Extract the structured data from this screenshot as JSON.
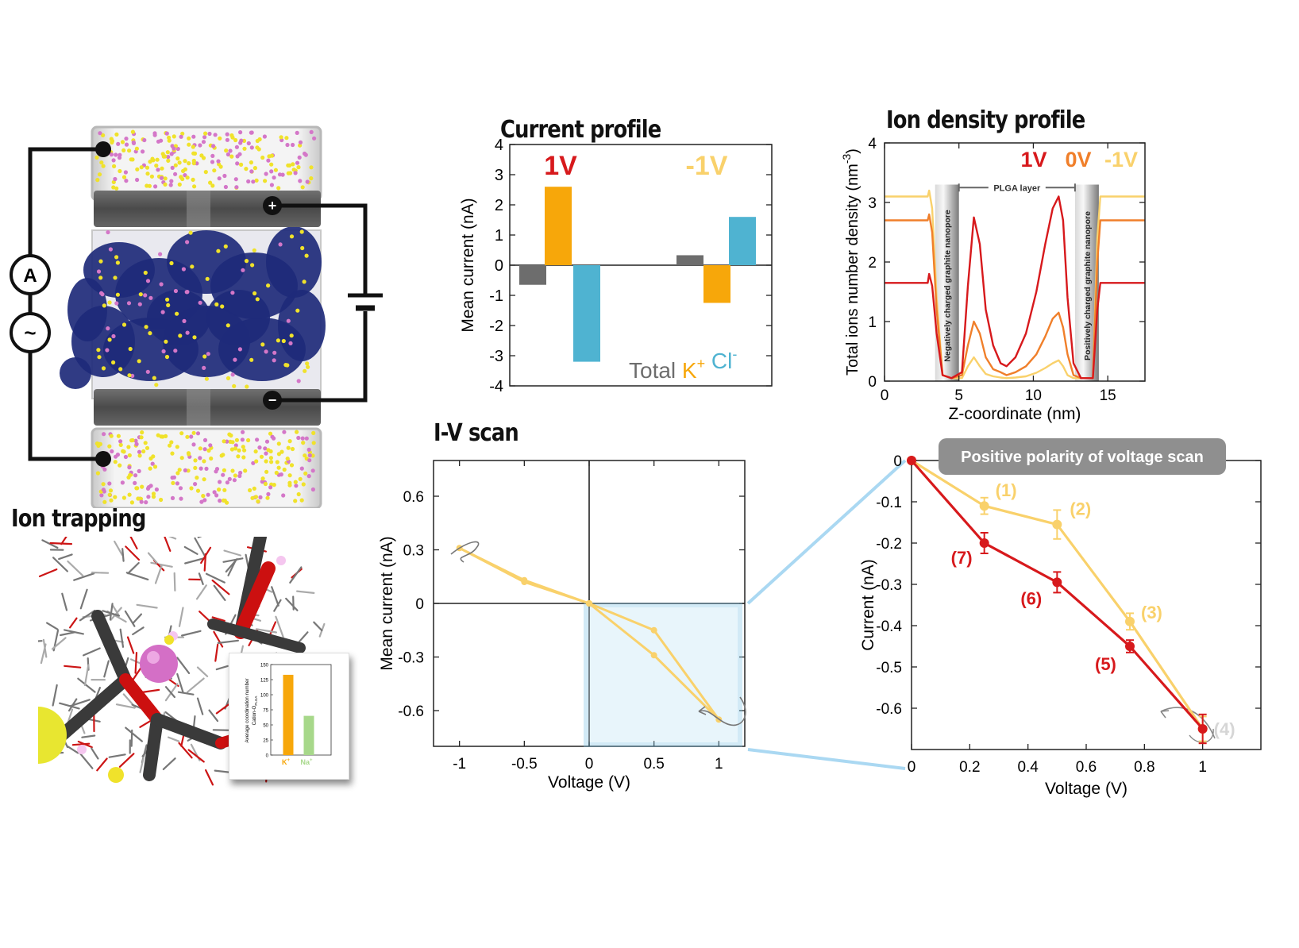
{
  "panels": {
    "current_title": "Current profile",
    "density_title": "Ion density profile",
    "iv_title": "I-V scan",
    "trap_title": "Ion trapping"
  },
  "colors": {
    "v_pos": "#d7191c",
    "v_zero": "#f07f2a",
    "v_neg": "#f9d16b",
    "total": "#6d6d6d",
    "k": "#f7a70a",
    "cl": "#4fb3d1",
    "na": "#a7d88a",
    "water_yellow": "#f0e22b",
    "water_pink": "#d477c8",
    "polymer": "#1e2a7a",
    "graphite": "#555555",
    "zoom_box": "#7fc6e8"
  },
  "circuit": {
    "ammeter_label": "A",
    "source_label": "~",
    "plus_label": "+",
    "minus_label": "−"
  },
  "chart_data": [
    {
      "id": "current_profile",
      "type": "bar",
      "title": "Current profile",
      "ylabel": "Mean current (nA)",
      "ylim": [
        -4,
        4
      ],
      "yticks": [
        4,
        3,
        2,
        1,
        0,
        -1,
        -2,
        -3,
        -4
      ],
      "groups": [
        {
          "label": "1V",
          "color": "#d7191c",
          "values": {
            "Total": -0.65,
            "K+": 2.6,
            "Cl-": -3.2
          }
        },
        {
          "label": "-1V",
          "color": "#f9d16b",
          "values": {
            "Total": 0.33,
            "K+": -1.25,
            "Cl-": 1.6
          }
        }
      ],
      "legend": [
        {
          "name": "Total",
          "sup": "",
          "color": "#6d6d6d"
        },
        {
          "name": "K",
          "sup": "+",
          "color": "#f7a70a"
        },
        {
          "name": "Cl",
          "sup": "-",
          "color": "#4fb3d1"
        }
      ],
      "legend_placement": "bottom-right"
    },
    {
      "id": "ion_density",
      "type": "line",
      "title": "Ion density profile",
      "xlabel": "Z-coordinate (nm)",
      "ylabel": "Total ions number density (nm",
      "ylabel_sup": "-3",
      "ylabel_end": ")",
      "xlim": [
        0,
        17.5
      ],
      "ylim": [
        0,
        4
      ],
      "xticks": [
        0,
        5,
        10,
        15
      ],
      "yticks": [
        0,
        1,
        2,
        3,
        4
      ],
      "annotations": {
        "layer": "PLGA layer",
        "neg_pore": "Negatively charged graphite nanopore",
        "pos_pore": "Positively charged graphite nanopore"
      },
      "series": [
        {
          "name": "1V",
          "color": "#d7191c",
          "x": [
            0,
            2.9,
            3.0,
            3.2,
            3.5,
            3.9,
            4.5,
            5.2,
            5.6,
            6.0,
            6.4,
            6.8,
            7.3,
            7.8,
            8.2,
            8.8,
            9.5,
            10.2,
            10.8,
            11.3,
            11.7,
            12.0,
            12.3,
            12.7,
            13.2,
            14.0,
            14.3,
            14.5,
            17.5
          ],
          "y": [
            1.65,
            1.65,
            1.8,
            1.6,
            0.8,
            0.1,
            0.05,
            0.15,
            1.6,
            2.75,
            2.3,
            1.2,
            0.6,
            0.3,
            0.25,
            0.4,
            0.8,
            1.5,
            2.3,
            2.9,
            3.1,
            2.7,
            1.4,
            0.3,
            0.05,
            0.05,
            1.2,
            1.65,
            1.65
          ]
        },
        {
          "name": "0V",
          "color": "#f07f2a",
          "x": [
            0,
            2.9,
            3.0,
            3.2,
            3.5,
            3.9,
            4.5,
            5.2,
            5.6,
            6.0,
            6.4,
            6.8,
            7.3,
            7.8,
            8.2,
            8.8,
            9.5,
            10.2,
            10.8,
            11.3,
            11.7,
            12.0,
            12.3,
            12.7,
            13.2,
            14.0,
            14.3,
            14.5,
            17.5
          ],
          "y": [
            2.7,
            2.7,
            2.8,
            2.5,
            1.2,
            0.1,
            0.05,
            0.1,
            0.6,
            1.0,
            0.8,
            0.4,
            0.2,
            0.15,
            0.1,
            0.15,
            0.25,
            0.45,
            0.75,
            1.05,
            1.15,
            0.9,
            0.45,
            0.1,
            0.05,
            0.05,
            2.0,
            2.7,
            2.7
          ]
        },
        {
          "name": "-1V",
          "color": "#f9d16b",
          "x": [
            0,
            2.9,
            3.0,
            3.2,
            3.5,
            3.9,
            4.5,
            5.2,
            5.6,
            6.0,
            6.4,
            6.8,
            7.3,
            7.8,
            8.2,
            8.8,
            9.5,
            10.2,
            10.8,
            11.3,
            11.7,
            12.0,
            12.3,
            12.7,
            13.2,
            14.0,
            14.3,
            14.5,
            17.5
          ],
          "y": [
            3.1,
            3.1,
            3.2,
            2.9,
            1.4,
            0.1,
            0.05,
            0.05,
            0.25,
            0.4,
            0.25,
            0.12,
            0.08,
            0.06,
            0.05,
            0.06,
            0.08,
            0.14,
            0.22,
            0.3,
            0.35,
            0.25,
            0.1,
            0.05,
            0.05,
            0.05,
            2.4,
            3.1,
            3.1
          ]
        }
      ]
    },
    {
      "id": "iv_scan",
      "type": "line",
      "title": "I-V scan",
      "xlabel": "Voltage (V)",
      "ylabel": "Mean current (nA)",
      "xlim": [
        -1.2,
        1.2
      ],
      "ylim": [
        -0.8,
        0.8
      ],
      "xticks": [
        -1,
        -0.5,
        0,
        0.5,
        1
      ],
      "xtick_labels": [
        "-1",
        "-0.5",
        "0",
        "0.5",
        "1"
      ],
      "yticks": [
        0.6,
        0.3,
        0,
        -0.3,
        -0.6
      ],
      "ytick_labels": [
        "0.6",
        "0.3",
        "0",
        "-0.3",
        "-0.6"
      ],
      "series": [
        {
          "name": "",
          "color": "#f9d16b",
          "x": [
            0,
            0.5,
            1,
            0.5,
            0,
            -0.5,
            -1,
            -0.5,
            0
          ],
          "y": [
            0,
            -0.15,
            -0.65,
            -0.29,
            0,
            0.13,
            0.31,
            0.12,
            0
          ]
        }
      ]
    },
    {
      "id": "iv_zoom",
      "type": "line",
      "title": "Positive polarity of voltage scan",
      "xlabel": "Voltage (V)",
      "ylabel": "Current (nA)",
      "xlim": [
        0,
        1.2
      ],
      "ylim": [
        -0.7,
        0
      ],
      "xticks": [
        0,
        0.2,
        0.4,
        0.6,
        0.8,
        1
      ],
      "xtick_labels": [
        "0",
        "0.2",
        "0.4",
        "0.6",
        "0.8",
        "1"
      ],
      "yticks": [
        0,
        -0.1,
        -0.2,
        -0.3,
        -0.4,
        -0.5,
        -0.6
      ],
      "ytick_labels": [
        "0",
        "-0.1",
        "-0.2",
        "-0.3",
        "-0.4",
        "-0.5",
        "-0.6"
      ],
      "series": [
        {
          "name": "",
          "color": "#f9d16b",
          "x": [
            0,
            0.25,
            0.5,
            0.75,
            1
          ],
          "y": [
            0,
            -0.11,
            -0.155,
            -0.39,
            -0.65
          ],
          "err": [
            0,
            0.02,
            0.035,
            0.02,
            0.03
          ],
          "labels": [
            "",
            "(1)",
            "(2)",
            "(3)",
            "(4)"
          ]
        },
        {
          "name": "",
          "color": "#d7191c",
          "x": [
            0,
            0.25,
            0.5,
            0.75,
            1
          ],
          "y": [
            0,
            -0.2,
            -0.295,
            -0.45,
            -0.65
          ],
          "err": [
            0,
            0.025,
            0.025,
            0.015,
            0.035
          ],
          "labels": [
            "",
            "(7)",
            "(6)",
            "(5)",
            ""
          ]
        }
      ]
    },
    {
      "id": "coordination_inset",
      "type": "bar",
      "ylabel": "Average coordination number",
      "ylabel2": "Cation-O",
      "ylabel2_sub": "PLGA",
      "ylim": [
        0,
        150
      ],
      "yticks": [
        0,
        25,
        50,
        75,
        100,
        125,
        150
      ],
      "bars": [
        {
          "name": "K",
          "sup": "+",
          "value": 133,
          "color": "#f7a70a"
        },
        {
          "name": "Na",
          "sup": "+",
          "value": 65,
          "color": "#a7d88a"
        }
      ]
    }
  ]
}
